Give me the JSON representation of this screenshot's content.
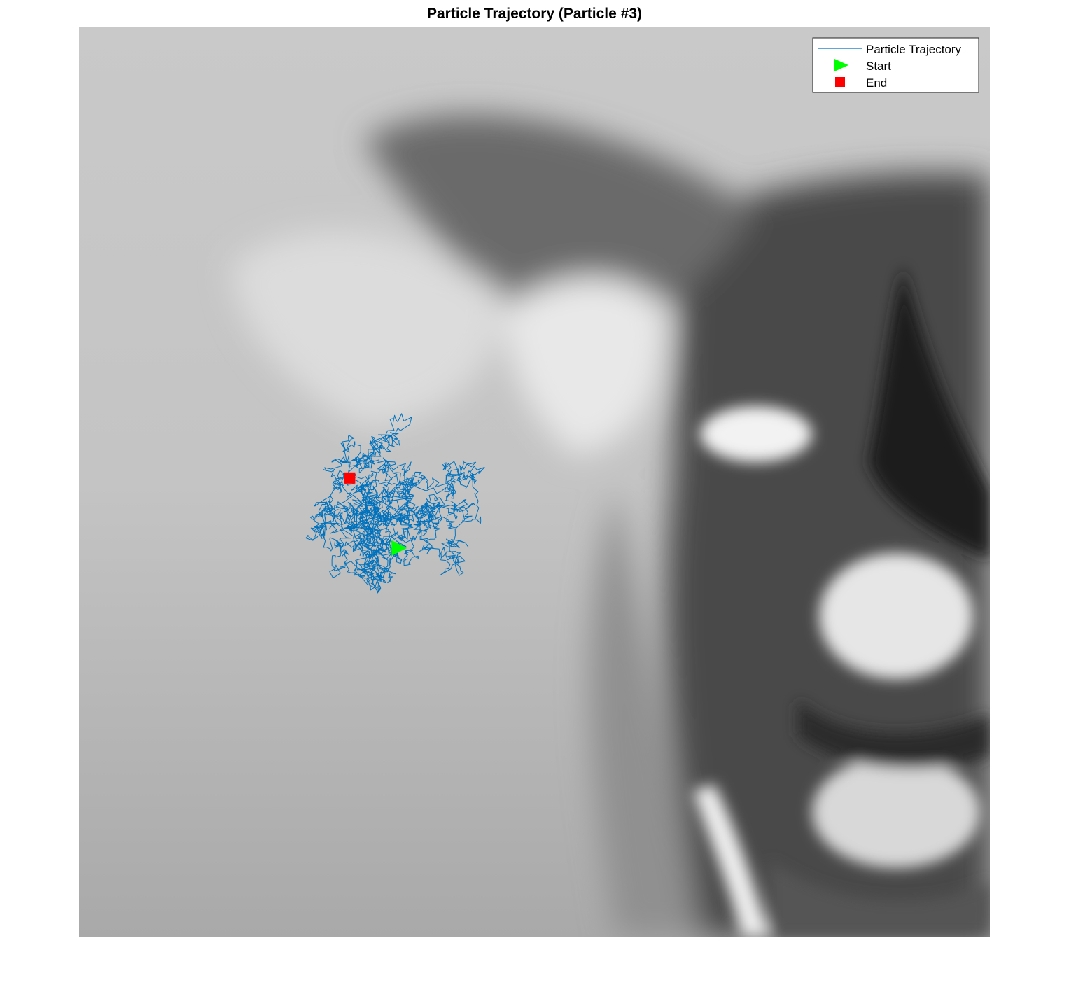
{
  "chart_data": {
    "type": "line",
    "title": "Particle Trajectory (Particle #3)",
    "xlabel": "",
    "ylabel": "",
    "axes_visible": false,
    "background": "grayscale photograph of a dog (ear, eye, snout) underlying the plot",
    "series": [
      {
        "name": "Particle Trajectory",
        "kind": "line",
        "color": "#0072BD",
        "description": "dense random-walk path (Brownian motion) wandering around the start point"
      },
      {
        "name": "Start",
        "kind": "marker",
        "marker": "right-triangle",
        "color": "#00FF00",
        "x": 350,
        "y": 573
      },
      {
        "name": "End",
        "kind": "marker",
        "marker": "square",
        "color": "#FF0000",
        "x": 297,
        "y": 496
      }
    ],
    "legend": {
      "position": "top-right",
      "entries": [
        "Particle Trajectory",
        "Start",
        "End"
      ]
    },
    "xlim": [
      0,
      1000
    ],
    "ylim": [
      0,
      1000
    ],
    "y_direction": "reverse",
    "grid": false
  }
}
